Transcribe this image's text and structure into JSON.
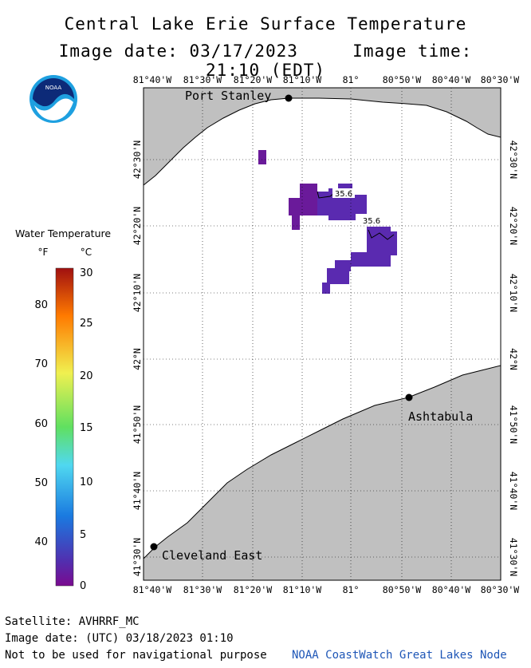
{
  "header": {
    "title": "Central Lake Erie Surface Temperature",
    "image_date_label": "Image date:",
    "image_date": "03/17/2023",
    "image_time_label": "Image time:",
    "image_time": "21:10 (EDT)"
  },
  "logo": {
    "text": "NOAA"
  },
  "map": {
    "lon_labels": [
      "81°40'W",
      "81°30'W",
      "81°20'W",
      "81°10'W",
      "81°",
      "80°50'W",
      "80°40'W",
      "80°30'W"
    ],
    "lat_labels": [
      "42°30'N",
      "42°20'N",
      "42°10'N",
      "42°N",
      "41°50'N",
      "41°40'N",
      "41°30'N"
    ],
    "land_color": "#c0c0c0",
    "water_color": "#ffffff",
    "cities": [
      {
        "name": "Port Stanley"
      },
      {
        "name": "Ashtabula"
      },
      {
        "name": "Cleveland East"
      }
    ],
    "contour_labels": [
      "35.6",
      "35.6"
    ],
    "sst_colors": [
      "#6a1a9a",
      "#5a2ab0"
    ]
  },
  "legend": {
    "title": "Water Temperature",
    "unit_f": "°F",
    "unit_c": "°C",
    "f_ticks": [
      "80",
      "70",
      "60",
      "50",
      "40"
    ],
    "c_ticks": [
      "30",
      "25",
      "20",
      "15",
      "10",
      "5",
      "0"
    ],
    "gradient_colors": [
      "#a01010",
      "#ff7a00",
      "#f0f050",
      "#60e060",
      "#50d8f0",
      "#1a7ae0",
      "#5030b0",
      "#7a0a90"
    ]
  },
  "footer": {
    "satellite": "Satellite: AVHRRF_MC",
    "utc_date": "Image date: (UTC) 03/18/2023  01:10",
    "disclaimer": "Not to be used for navigational purpose",
    "credit": "NOAA CoastWatch Great Lakes Node"
  }
}
